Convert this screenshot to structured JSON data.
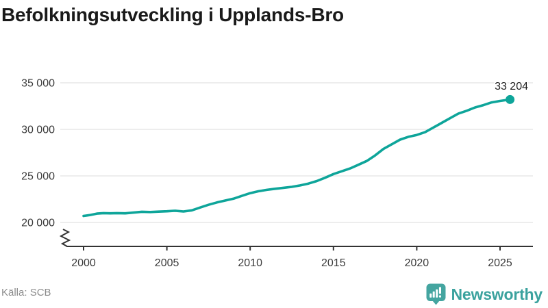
{
  "header": {
    "title": "Befolkningsutveckling i Upplands-Bro"
  },
  "footer": {
    "source": "Källa: SCB",
    "brand": "Newsworthy"
  },
  "colors": {
    "line": "#0ea59a",
    "grid": "#e2e2e2",
    "axis": "#333333",
    "tick_label": "#3b3b3b",
    "annotation": "#1e1e1e",
    "brand_teal": "#44a5a0"
  },
  "chart_data": {
    "type": "line",
    "title": "Befolkningsutveckling i Upplands-Bro",
    "xlabel": "",
    "ylabel": "",
    "x_ticks": [
      "2000",
      "2005",
      "2010",
      "2015",
      "2020",
      "2025"
    ],
    "x_tick_years": [
      2000,
      2005,
      2010,
      2015,
      2020,
      2025
    ],
    "y_ticks": [
      {
        "value": 35000,
        "label": "35 000"
      },
      {
        "value": 30000,
        "label": "30 000"
      },
      {
        "value": 25000,
        "label": "25 000"
      },
      {
        "value": 20000,
        "label": "20 000"
      }
    ],
    "ylim_displayed": [
      20000,
      35000
    ],
    "axis_break": true,
    "grid": true,
    "legend": "none",
    "end_annotation": {
      "label": "33 204",
      "value": 33204,
      "year": 2025.6
    },
    "series": [
      {
        "name": "Befolkning",
        "points": [
          [
            2000.0,
            20700
          ],
          [
            2000.4,
            20800
          ],
          [
            2000.8,
            20950
          ],
          [
            2001.2,
            21000
          ],
          [
            2001.6,
            20980
          ],
          [
            2002.0,
            21000
          ],
          [
            2002.5,
            20980
          ],
          [
            2003.0,
            21060
          ],
          [
            2003.5,
            21150
          ],
          [
            2004.0,
            21120
          ],
          [
            2004.5,
            21160
          ],
          [
            2005.0,
            21200
          ],
          [
            2005.5,
            21260
          ],
          [
            2006.0,
            21180
          ],
          [
            2006.5,
            21300
          ],
          [
            2007.0,
            21600
          ],
          [
            2007.5,
            21900
          ],
          [
            2008.0,
            22150
          ],
          [
            2008.5,
            22350
          ],
          [
            2009.0,
            22550
          ],
          [
            2009.5,
            22850
          ],
          [
            2010.0,
            23150
          ],
          [
            2010.5,
            23350
          ],
          [
            2011.0,
            23500
          ],
          [
            2011.5,
            23620
          ],
          [
            2012.0,
            23720
          ],
          [
            2012.5,
            23820
          ],
          [
            2013.0,
            23980
          ],
          [
            2013.5,
            24180
          ],
          [
            2014.0,
            24450
          ],
          [
            2014.5,
            24800
          ],
          [
            2015.0,
            25200
          ],
          [
            2015.5,
            25500
          ],
          [
            2016.0,
            25800
          ],
          [
            2016.5,
            26200
          ],
          [
            2017.0,
            26600
          ],
          [
            2017.5,
            27200
          ],
          [
            2018.0,
            27900
          ],
          [
            2018.5,
            28400
          ],
          [
            2019.0,
            28900
          ],
          [
            2019.5,
            29200
          ],
          [
            2020.0,
            29400
          ],
          [
            2020.5,
            29700
          ],
          [
            2021.0,
            30200
          ],
          [
            2021.5,
            30700
          ],
          [
            2022.0,
            31200
          ],
          [
            2022.5,
            31700
          ],
          [
            2023.0,
            32000
          ],
          [
            2023.5,
            32350
          ],
          [
            2024.0,
            32600
          ],
          [
            2024.5,
            32900
          ],
          [
            2025.0,
            33050
          ],
          [
            2025.6,
            33204
          ]
        ]
      }
    ]
  }
}
